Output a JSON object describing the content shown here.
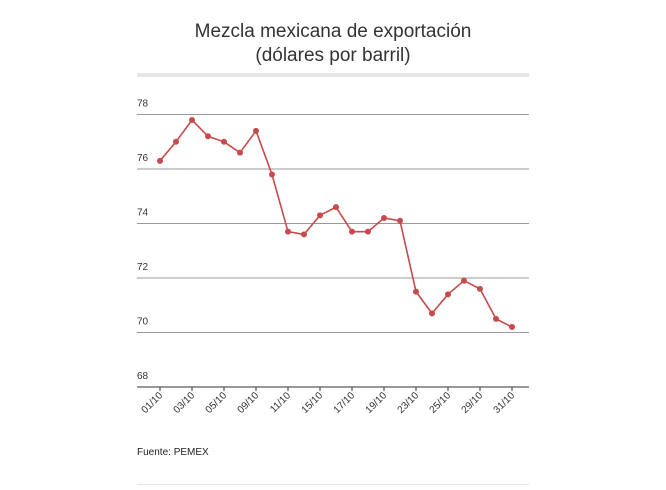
{
  "title_line1": "Mezcla mexicana de exportación",
  "title_line2": "(dólares por barril)",
  "source": "Fuente: PEMEX",
  "colors": {
    "line": "#c74a4c",
    "grid": "#999999",
    "axis": "#333333",
    "text": "#333333"
  },
  "chart_data": {
    "type": "line",
    "title": "Mezcla mexicana de exportación (dólares por barril)",
    "ylim": [
      68,
      79
    ],
    "yticks": [
      68,
      70,
      72,
      74,
      76,
      78
    ],
    "x_tick_labels": [
      "01/10",
      "03/10",
      "05/10",
      "09/10",
      "11/10",
      "15/10",
      "17/10",
      "19/10",
      "23/10",
      "25/10",
      "29/10",
      "31/10"
    ],
    "x_tick_index": [
      0,
      2,
      4,
      6,
      8,
      10,
      12,
      14,
      16,
      18,
      20,
      22
    ],
    "series": [
      {
        "values": [
          76.3,
          77.0,
          77.8,
          77.2,
          77.0,
          76.6,
          77.4,
          75.8,
          73.7,
          73.6,
          74.3,
          74.6,
          73.7,
          73.7,
          74.2,
          74.1,
          71.5,
          70.7,
          71.4,
          71.9,
          71.6,
          70.5,
          70.2
        ]
      }
    ]
  }
}
